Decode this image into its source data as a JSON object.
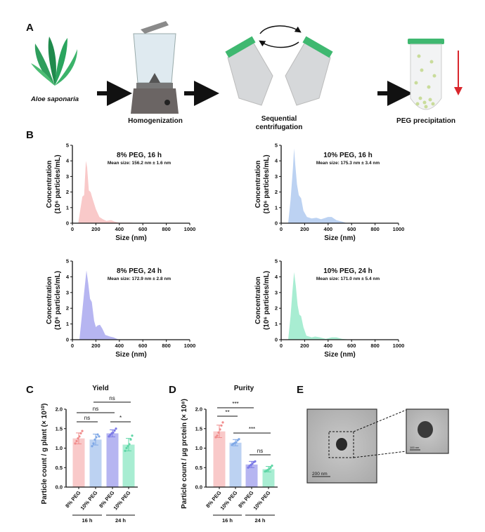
{
  "panel_labels": {
    "a": "A",
    "b": "B",
    "c": "C",
    "d": "D",
    "e": "E"
  },
  "workflow": {
    "steps": [
      "Aloe saponaria",
      "Homogenization",
      "Sequential",
      "centrifugation",
      "PEG precipitation"
    ]
  },
  "tem": {
    "scale_main": "200 nm",
    "scale_inset": "100 nm"
  },
  "chart_data": [
    {
      "type": "area",
      "title": "8%  PEG, 16 h",
      "subtitle": "Mean size: 156.2 nm ± 1.6 nm",
      "xlabel": "Size (nm)",
      "ylabel_1": "Concentration",
      "ylabel_2": "(10⁶ particles/mL)",
      "xlim": [
        0,
        1000
      ],
      "ylim": [
        0,
        5
      ],
      "xticks": [
        "0",
        "200",
        "400",
        "600",
        "800",
        "1000"
      ],
      "yticks": [
        "0",
        "1",
        "2",
        "3",
        "4",
        "5"
      ],
      "color": "#f9c9c9",
      "points": [
        [
          50,
          0
        ],
        [
          70,
          1.0
        ],
        [
          85,
          1.7
        ],
        [
          100,
          1.8
        ],
        [
          115,
          4.0
        ],
        [
          125,
          3.6
        ],
        [
          140,
          2.1
        ],
        [
          155,
          2.0
        ],
        [
          175,
          1.5
        ],
        [
          200,
          0.9
        ],
        [
          230,
          0.4
        ],
        [
          260,
          0.25
        ],
        [
          290,
          0.15
        ],
        [
          330,
          0.2
        ],
        [
          360,
          0.1
        ],
        [
          400,
          0.03
        ],
        [
          500,
          0.03
        ],
        [
          550,
          0
        ]
      ]
    },
    {
      "type": "area",
      "title": "10%  PEG, 16 h",
      "subtitle": "Mean size: 175.3 nm ± 3.4 nm",
      "xlabel": "Size (nm)",
      "ylabel_1": "Concentration",
      "ylabel_2": "(10⁶ particles/mL)",
      "xlim": [
        0,
        1000
      ],
      "ylim": [
        0,
        5
      ],
      "xticks": [
        "0",
        "200",
        "400",
        "600",
        "800",
        "1000"
      ],
      "yticks": [
        "0",
        "1",
        "2",
        "3",
        "4",
        "5"
      ],
      "color": "#bcd2f2",
      "points": [
        [
          60,
          0
        ],
        [
          80,
          1.5
        ],
        [
          100,
          3.5
        ],
        [
          110,
          4.8
        ],
        [
          120,
          3.8
        ],
        [
          135,
          2.5
        ],
        [
          150,
          1.8
        ],
        [
          170,
          1.6
        ],
        [
          190,
          0.8
        ],
        [
          220,
          0.4
        ],
        [
          260,
          0.3
        ],
        [
          300,
          0.35
        ],
        [
          340,
          0.25
        ],
        [
          400,
          0.4
        ],
        [
          430,
          0.4
        ],
        [
          470,
          0.2
        ],
        [
          520,
          0.1
        ],
        [
          560,
          0
        ]
      ]
    },
    {
      "type": "area",
      "title": "8%  PEG, 24 h",
      "subtitle": "Mean size: 172.9 nm ± 2.8 nm",
      "xlabel": "Size (nm)",
      "ylabel_1": "Concentration",
      "ylabel_2": "(10⁶ particles/mL)",
      "xlim": [
        0,
        1000
      ],
      "ylim": [
        0,
        5
      ],
      "xticks": [
        "0",
        "200",
        "400",
        "600",
        "800",
        "1000"
      ],
      "yticks": [
        "0",
        "1",
        "2",
        "3",
        "4",
        "5"
      ],
      "color": "#b6b5f1",
      "points": [
        [
          60,
          0
        ],
        [
          80,
          1.5
        ],
        [
          100,
          3.0
        ],
        [
          120,
          4.4
        ],
        [
          135,
          3.6
        ],
        [
          150,
          2.6
        ],
        [
          165,
          2.4
        ],
        [
          185,
          1.2
        ],
        [
          200,
          0.8
        ],
        [
          215,
          0.9
        ],
        [
          235,
          0.95
        ],
        [
          255,
          0.7
        ],
        [
          280,
          0.3
        ],
        [
          320,
          0.2
        ],
        [
          350,
          0.15
        ],
        [
          380,
          0.05
        ],
        [
          400,
          0
        ]
      ]
    },
    {
      "type": "area",
      "title": "10%  PEG, 24 h",
      "subtitle": "Mean size: 171.0 nm ± 5.4 nm",
      "xlabel": "Size (nm)",
      "ylabel_1": "Concentration",
      "ylabel_2": "(10⁶ particles/mL)",
      "xlim": [
        0,
        1000
      ],
      "ylim": [
        0,
        5
      ],
      "xticks": [
        "0",
        "200",
        "400",
        "600",
        "800",
        "1000"
      ],
      "yticks": [
        "0",
        "1",
        "2",
        "3",
        "4",
        "5"
      ],
      "color": "#a8edd2",
      "points": [
        [
          60,
          0
        ],
        [
          80,
          1.5
        ],
        [
          95,
          3.0
        ],
        [
          110,
          4.3
        ],
        [
          125,
          3.4
        ],
        [
          140,
          2.2
        ],
        [
          155,
          1.6
        ],
        [
          170,
          1.5
        ],
        [
          190,
          0.8
        ],
        [
          215,
          0.25
        ],
        [
          260,
          0.15
        ],
        [
          290,
          0.2
        ],
        [
          330,
          0.15
        ],
        [
          380,
          0.05
        ],
        [
          430,
          0.15
        ],
        [
          470,
          0.15
        ],
        [
          520,
          0.05
        ],
        [
          600,
          0
        ]
      ]
    },
    {
      "type": "bar",
      "title": "Yield",
      "ylabel": "Particle count / g plant (× 10¹⁰)",
      "ylim": [
        0,
        2.0
      ],
      "yticks": [
        "0.0",
        "0.5",
        "1.0",
        "1.5",
        "2.0"
      ],
      "categories": [
        "8% PEG",
        "10% PEG",
        "8% PEG",
        "10% PEG"
      ],
      "groups": [
        "16 h",
        "24 h"
      ],
      "values": [
        1.25,
        1.22,
        1.38,
        1.09
      ],
      "errors": [
        0.14,
        0.14,
        0.09,
        0.16
      ],
      "points": [
        [
          1.12,
          1.18,
          1.25,
          1.3,
          1.38,
          1.44
        ],
        [
          1.05,
          1.12,
          1.22,
          1.28,
          1.35,
          1.3
        ],
        [
          1.3,
          1.34,
          1.38,
          1.4,
          1.45,
          1.5
        ],
        [
          0.93,
          1.0,
          1.05,
          1.1,
          1.22,
          1.32
        ]
      ],
      "colors": [
        "#f9c9c9",
        "#bcd2f2",
        "#b6b5f1",
        "#a8edd2"
      ],
      "dot_colors": [
        "#f08c8c",
        "#7fa8e6",
        "#7c7ae6",
        "#5fd6a6"
      ],
      "significance": [
        {
          "a": 0,
          "b": 1,
          "label": "ns"
        },
        {
          "a": 0,
          "b": 2,
          "label": "ns"
        },
        {
          "a": 1,
          "b": 3,
          "label": "ns"
        },
        {
          "a": 2,
          "b": 3,
          "label": "*"
        }
      ]
    },
    {
      "type": "bar",
      "title": "Purity",
      "ylabel": "Particle count / μg prctein (× 10⁸)",
      "ylim": [
        0,
        2.0
      ],
      "yticks": [
        "0.0",
        "0.5",
        "1.0",
        "1.5",
        "2.0"
      ],
      "categories": [
        "8% PEG",
        "10% PEG",
        "8% PEG",
        "10% PEG"
      ],
      "groups": [
        "16 h",
        "24 h"
      ],
      "values": [
        1.43,
        1.14,
        0.58,
        0.46
      ],
      "errors": [
        0.16,
        0.08,
        0.08,
        0.07
      ],
      "points": [
        [
          1.28,
          1.32,
          1.4,
          1.48,
          1.58,
          1.66
        ],
        [
          1.08,
          1.11,
          1.13,
          1.15,
          1.2,
          1.23
        ],
        [
          0.5,
          0.54,
          0.57,
          0.6,
          0.64,
          0.66
        ],
        [
          0.4,
          0.42,
          0.44,
          0.47,
          0.5,
          0.55
        ]
      ],
      "colors": [
        "#f9c9c9",
        "#bcd2f2",
        "#b6b5f1",
        "#a8edd2"
      ],
      "dot_colors": [
        "#f08c8c",
        "#7fa8e6",
        "#7c7ae6",
        "#5fd6a6"
      ],
      "significance": [
        {
          "a": 0,
          "b": 2,
          "label": "***"
        },
        {
          "a": 0,
          "b": 1,
          "label": "**"
        },
        {
          "a": 1,
          "b": 3,
          "label": "***"
        },
        {
          "a": 2,
          "b": 3,
          "label": "ns"
        }
      ]
    }
  ]
}
